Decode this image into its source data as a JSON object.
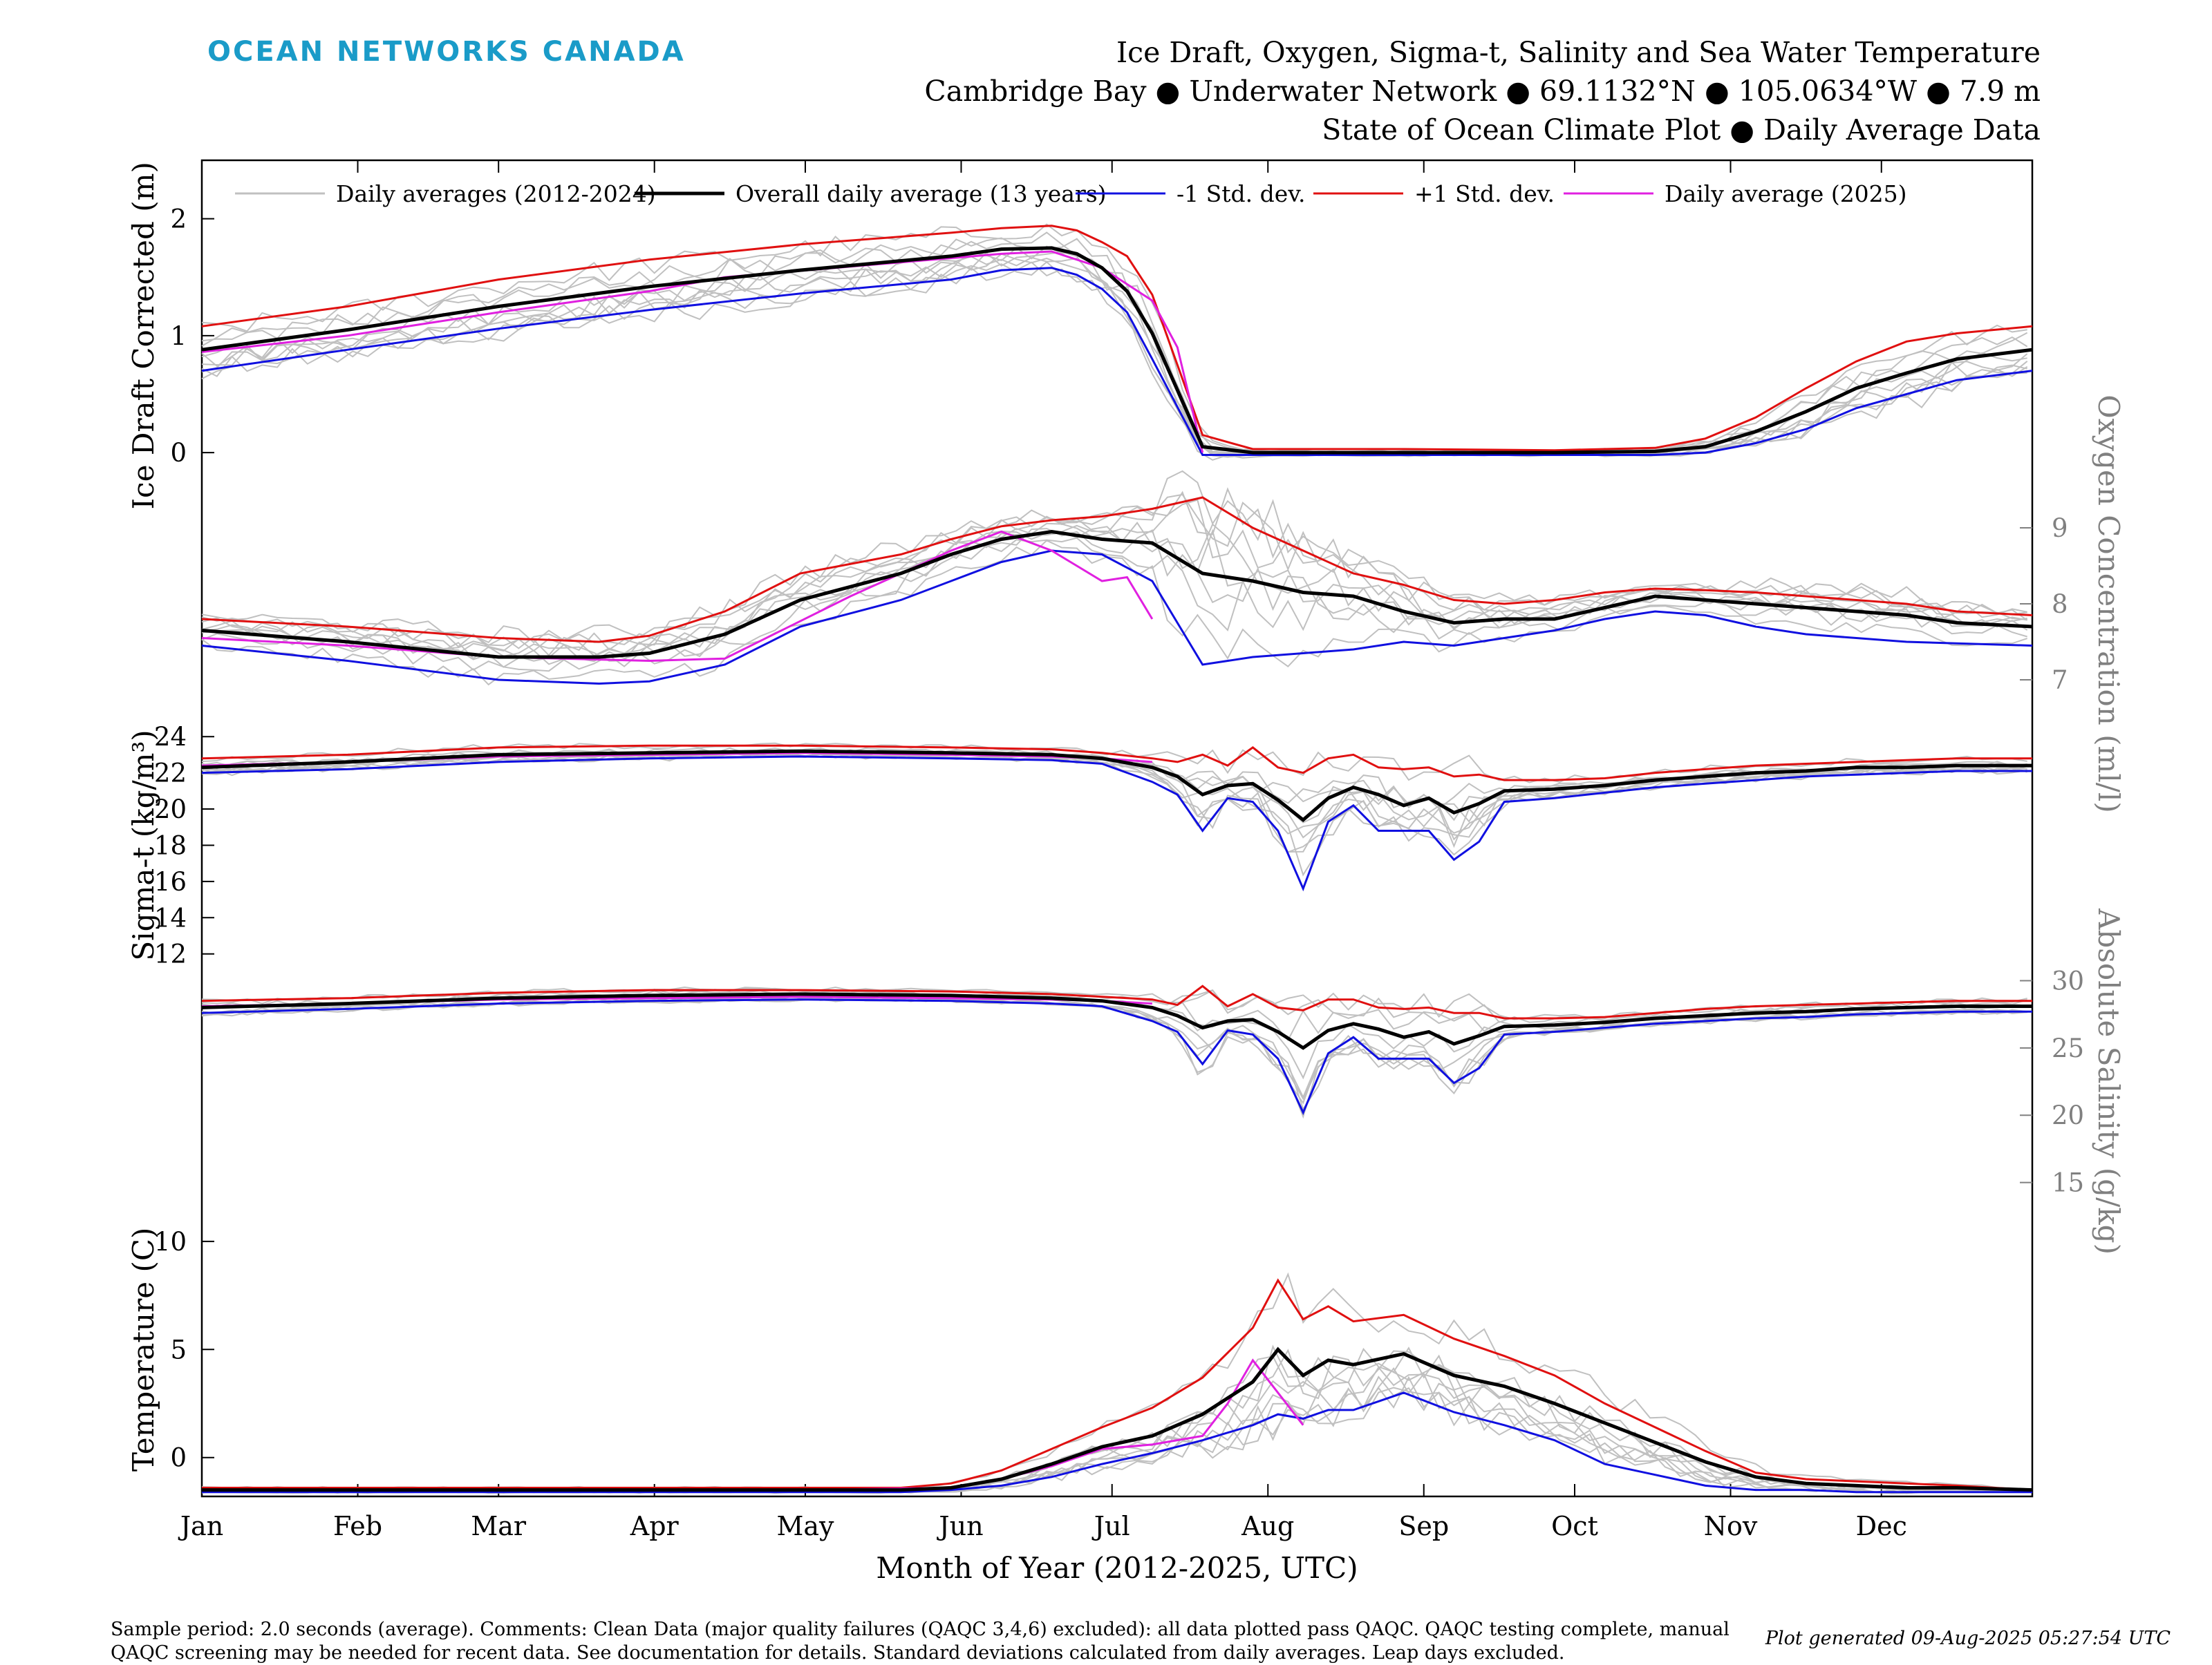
{
  "header": {
    "logo_text": "OCEAN NETWORKS CANADA",
    "title_line1": "Ice Draft, Oxygen, Sigma-t, Salinity and Sea Water Temperature",
    "title_line2": "Cambridge Bay ● Underwater Network ● 69.1132°N ● 105.0634°W ● 7.9 m",
    "title_line3": "State of Ocean Climate Plot ● Daily Average Data"
  },
  "legend": [
    {
      "label": "Daily averages (2012-2024)",
      "color": "#c0c0c0"
    },
    {
      "label": "Overall daily average (13 years)",
      "color": "#000000"
    },
    {
      "label": "-1 Std. dev.",
      "color": "#1010e0"
    },
    {
      "label": "+1 Std. dev.",
      "color": "#e01010"
    },
    {
      "label": "Daily average (2025)",
      "color": "#e020e0"
    }
  ],
  "footer": {
    "note": "Sample period: 2.0 seconds (average). Comments: Clean Data (major quality failures (QAQC 3,4,6) excluded): all data plotted pass QAQC. QAQC testing complete, manual QAQC screening may be needed for recent data. See documentation for details. Standard deviations calculated from daily averages. Leap days excluded.",
    "generated": "Plot generated 09-Aug-2025 05:27:54 UTC"
  },
  "chart_data": {
    "type": "line",
    "xlabel": "Month of Year (2012-2025, UTC)",
    "x_ticks": [
      "Jan",
      "Feb",
      "Mar",
      "Apr",
      "May",
      "Jun",
      "Jul",
      "Aug",
      "Sep",
      "Oct",
      "Nov",
      "Dec"
    ],
    "colors": {
      "daily": "#c0c0c0",
      "mean": "#000000",
      "minus_sd": "#1010e0",
      "plus_sd": "#e01010",
      "current": "#e020e0"
    },
    "panels": [
      {
        "name": "ice_draft",
        "ylabel": "Ice Draft Corrected (m)",
        "axis_side": "left",
        "ylim": [
          -0.1,
          2.5
        ],
        "yticks": [
          0,
          1,
          2
        ],
        "x": [
          1,
          30,
          60,
          90,
          120,
          150,
          160,
          170,
          175,
          180,
          185,
          190,
          200,
          210,
          240,
          270,
          290,
          300,
          310,
          320,
          330,
          340,
          350,
          365
        ],
        "mean": [
          0.88,
          1.05,
          1.25,
          1.42,
          1.56,
          1.68,
          1.74,
          1.75,
          1.7,
          1.58,
          1.38,
          1.02,
          0.05,
          0.0,
          0.0,
          0.0,
          0.01,
          0.05,
          0.18,
          0.35,
          0.55,
          0.68,
          0.8,
          0.88
        ],
        "plus_sd": [
          1.08,
          1.25,
          1.48,
          1.65,
          1.78,
          1.88,
          1.92,
          1.94,
          1.9,
          1.8,
          1.68,
          1.35,
          0.15,
          0.03,
          0.03,
          0.02,
          0.04,
          0.12,
          0.3,
          0.55,
          0.78,
          0.95,
          1.02,
          1.08
        ],
        "minus_sd": [
          0.7,
          0.88,
          1.06,
          1.22,
          1.36,
          1.48,
          1.56,
          1.58,
          1.52,
          1.4,
          1.2,
          0.8,
          -0.02,
          -0.02,
          -0.02,
          -0.02,
          -0.02,
          0.0,
          0.08,
          0.2,
          0.38,
          0.5,
          0.62,
          0.7
        ],
        "current_x": [
          1,
          30,
          60,
          90,
          105,
          160,
          170,
          180,
          190,
          195,
          200
        ],
        "current": [
          0.86,
          1.0,
          1.2,
          1.38,
          1.5,
          1.7,
          1.72,
          1.58,
          1.3,
          0.9,
          0.0
        ]
      },
      {
        "name": "oxygen",
        "ylabel": "Oxygen Concentration (ml/l)",
        "axis_side": "right",
        "ylim": [
          6.4,
          9.8
        ],
        "yticks": [
          7,
          8,
          9
        ],
        "x": [
          1,
          30,
          60,
          80,
          90,
          105,
          120,
          140,
          150,
          160,
          170,
          180,
          190,
          200,
          210,
          220,
          230,
          240,
          250,
          260,
          270,
          280,
          290,
          300,
          310,
          320,
          330,
          340,
          350,
          365
        ],
        "mean": [
          7.65,
          7.5,
          7.3,
          7.3,
          7.35,
          7.6,
          8.05,
          8.4,
          8.65,
          8.85,
          8.95,
          8.85,
          8.8,
          8.4,
          8.3,
          8.15,
          8.1,
          7.9,
          7.75,
          7.8,
          7.8,
          7.95,
          8.1,
          8.05,
          8.0,
          7.95,
          7.9,
          7.85,
          7.75,
          7.7
        ],
        "plus_sd": [
          7.8,
          7.7,
          7.55,
          7.5,
          7.58,
          7.9,
          8.4,
          8.65,
          8.85,
          9.02,
          9.1,
          9.15,
          9.25,
          9.4,
          9.0,
          8.7,
          8.4,
          8.25,
          8.05,
          8.0,
          8.05,
          8.15,
          8.2,
          8.18,
          8.15,
          8.1,
          8.05,
          8.0,
          7.9,
          7.85
        ],
        "minus_sd": [
          7.45,
          7.25,
          7.0,
          6.95,
          6.98,
          7.2,
          7.7,
          8.05,
          8.3,
          8.55,
          8.7,
          8.65,
          8.3,
          7.2,
          7.3,
          7.35,
          7.4,
          7.5,
          7.45,
          7.55,
          7.65,
          7.8,
          7.9,
          7.85,
          7.7,
          7.6,
          7.55,
          7.5,
          7.48,
          7.45
        ],
        "current_x": [
          1,
          30,
          60,
          90,
          105,
          130,
          140,
          150,
          160,
          170,
          175,
          180,
          185,
          190
        ],
        "current": [
          7.55,
          7.45,
          7.3,
          7.25,
          7.28,
          8.1,
          8.4,
          8.7,
          8.95,
          8.7,
          8.5,
          8.3,
          8.35,
          7.8
        ]
      },
      {
        "name": "sigma_t",
        "ylabel": "Sigma-t (kg/m³)",
        "axis_side": "left",
        "ylim": [
          10.5,
          25
        ],
        "yticks": [
          12,
          14,
          16,
          18,
          20,
          22,
          24
        ],
        "x": [
          1,
          30,
          60,
          90,
          120,
          150,
          170,
          180,
          190,
          195,
          200,
          205,
          210,
          215,
          220,
          225,
          230,
          235,
          240,
          245,
          250,
          255,
          260,
          270,
          280,
          290,
          300,
          310,
          320,
          330,
          340,
          350,
          365
        ],
        "mean": [
          22.3,
          22.6,
          23.0,
          23.1,
          23.2,
          23.1,
          23.0,
          22.8,
          22.3,
          21.8,
          20.8,
          21.3,
          21.4,
          20.5,
          19.4,
          20.6,
          21.2,
          20.8,
          20.2,
          20.6,
          19.8,
          20.3,
          21.0,
          21.1,
          21.3,
          21.6,
          21.8,
          22.0,
          22.1,
          22.3,
          22.3,
          22.4,
          22.4
        ],
        "plus_sd": [
          22.8,
          23.0,
          23.4,
          23.5,
          23.5,
          23.4,
          23.3,
          23.1,
          22.8,
          22.6,
          23.0,
          22.4,
          23.4,
          22.3,
          22.0,
          22.8,
          23.0,
          22.3,
          22.2,
          22.3,
          21.8,
          21.9,
          21.6,
          21.6,
          21.7,
          22.0,
          22.2,
          22.4,
          22.5,
          22.6,
          22.7,
          22.8,
          22.8
        ],
        "minus_sd": [
          22.0,
          22.2,
          22.6,
          22.8,
          22.9,
          22.8,
          22.7,
          22.5,
          21.5,
          20.8,
          18.8,
          20.6,
          20.4,
          18.8,
          15.6,
          19.3,
          20.2,
          18.8,
          18.8,
          18.8,
          17.2,
          18.2,
          20.4,
          20.6,
          20.9,
          21.2,
          21.4,
          21.6,
          21.8,
          21.9,
          22.0,
          22.1,
          22.1
        ],
        "current_x": [
          1,
          30,
          60,
          90,
          120,
          150,
          170,
          180,
          185,
          190
        ],
        "current": [
          22.4,
          22.6,
          22.9,
          23.0,
          23.1,
          23.0,
          22.9,
          22.8,
          22.7,
          22.6
        ]
      },
      {
        "name": "salinity",
        "ylabel": "Absolute Salinity (g/kg)",
        "axis_side": "right",
        "ylim": [
          12,
          31
        ],
        "yticks": [
          15,
          20,
          25,
          30
        ],
        "x": [
          1,
          30,
          60,
          90,
          120,
          150,
          170,
          180,
          190,
          195,
          200,
          205,
          210,
          215,
          220,
          225,
          230,
          235,
          240,
          245,
          250,
          255,
          260,
          270,
          280,
          290,
          300,
          310,
          320,
          330,
          340,
          350,
          365
        ],
        "mean": [
          28.0,
          28.3,
          28.7,
          28.9,
          29.0,
          28.9,
          28.7,
          28.5,
          28.0,
          27.4,
          26.5,
          27.0,
          27.1,
          26.2,
          25.0,
          26.3,
          26.8,
          26.4,
          25.8,
          26.2,
          25.3,
          25.9,
          26.6,
          26.7,
          26.9,
          27.2,
          27.4,
          27.6,
          27.7,
          27.9,
          28.0,
          28.1,
          28.1
        ],
        "plus_sd": [
          28.5,
          28.7,
          29.1,
          29.3,
          29.3,
          29.2,
          29.0,
          28.8,
          28.6,
          28.2,
          29.6,
          28.1,
          29.0,
          28.0,
          27.8,
          28.6,
          28.6,
          28.0,
          27.9,
          28.0,
          27.6,
          27.6,
          27.2,
          27.2,
          27.3,
          27.6,
          27.9,
          28.1,
          28.2,
          28.3,
          28.4,
          28.5,
          28.5
        ],
        "minus_sd": [
          27.6,
          27.9,
          28.3,
          28.5,
          28.6,
          28.5,
          28.3,
          28.1,
          27.0,
          26.2,
          23.8,
          26.3,
          26.0,
          24.2,
          20.2,
          24.6,
          25.8,
          24.2,
          24.2,
          24.2,
          22.4,
          23.5,
          26.0,
          26.2,
          26.5,
          26.8,
          27.0,
          27.2,
          27.3,
          27.5,
          27.6,
          27.7,
          27.7
        ],
        "current_x": [
          1,
          30,
          60,
          90,
          120,
          150,
          170,
          180,
          185,
          190
        ],
        "current": [
          28.1,
          28.3,
          28.6,
          28.7,
          28.8,
          28.7,
          28.6,
          28.5,
          28.4,
          28.3
        ]
      },
      {
        "name": "temperature",
        "ylabel": "Temperature (C)",
        "axis_side": "left",
        "ylim": [
          -1.8,
          11.5
        ],
        "yticks": [
          0,
          5,
          10
        ],
        "x": [
          1,
          30,
          60,
          90,
          120,
          140,
          150,
          160,
          170,
          180,
          190,
          200,
          210,
          215,
          220,
          225,
          230,
          240,
          250,
          260,
          270,
          280,
          290,
          300,
          310,
          320,
          330,
          340,
          350,
          365
        ],
        "mean": [
          -1.5,
          -1.5,
          -1.5,
          -1.5,
          -1.5,
          -1.5,
          -1.4,
          -1.0,
          -0.3,
          0.5,
          1.0,
          2.0,
          3.5,
          5.0,
          3.8,
          4.5,
          4.3,
          4.8,
          3.8,
          3.3,
          2.5,
          1.6,
          0.7,
          -0.2,
          -0.9,
          -1.2,
          -1.3,
          -1.4,
          -1.4,
          -1.5
        ],
        "plus_sd": [
          -1.4,
          -1.4,
          -1.4,
          -1.4,
          -1.4,
          -1.4,
          -1.2,
          -0.6,
          0.4,
          1.4,
          2.3,
          3.7,
          6.0,
          8.2,
          6.4,
          7.0,
          6.3,
          6.6,
          5.5,
          4.7,
          3.8,
          2.5,
          1.4,
          0.3,
          -0.7,
          -1.0,
          -1.1,
          -1.2,
          -1.3,
          -1.5
        ],
        "minus_sd": [
          -1.6,
          -1.6,
          -1.6,
          -1.6,
          -1.6,
          -1.6,
          -1.5,
          -1.3,
          -0.9,
          -0.3,
          0.2,
          0.8,
          1.5,
          2.0,
          1.8,
          2.2,
          2.2,
          3.0,
          2.1,
          1.5,
          0.8,
          -0.3,
          -0.8,
          -1.3,
          -1.5,
          -1.5,
          -1.6,
          -1.6,
          -1.6,
          -1.6
        ],
        "current_x": [
          1,
          30,
          60,
          90,
          120,
          150,
          160,
          170,
          180,
          190,
          200,
          205,
          210,
          215,
          220
        ],
        "current": [
          -1.5,
          -1.5,
          -1.5,
          -1.5,
          -1.5,
          -1.4,
          -1.0,
          -0.4,
          0.4,
          0.6,
          1.0,
          2.5,
          4.5,
          3.0,
          1.5
        ]
      }
    ]
  }
}
